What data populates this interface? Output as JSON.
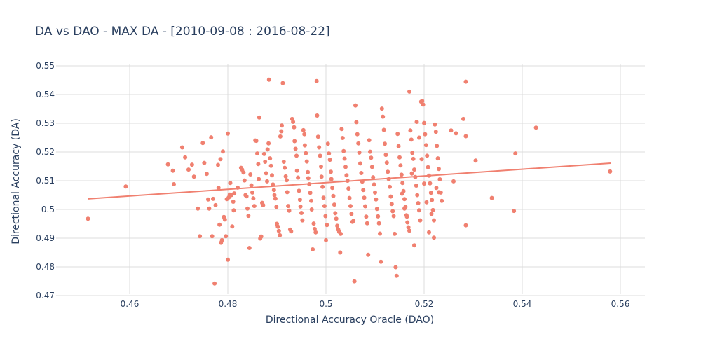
{
  "chart_data": {
    "type": "scatter",
    "title": "DA vs DAO - MAX DA - [2010-09-08 : 2016-08-22]",
    "xlabel": "Directional Accuracy Oracle (DAO)",
    "ylabel": "Directional Accuracy (DA)",
    "xlim": [
      0.445,
      0.565
    ],
    "ylim": [
      0.4705,
      0.5505
    ],
    "xticks": [
      0.46,
      0.48,
      0.5,
      0.52,
      0.54,
      0.56
    ],
    "yticks": [
      0.47,
      0.48,
      0.49,
      0.5,
      0.51,
      0.52,
      0.53,
      0.54,
      0.55
    ],
    "xtick_labels": [
      "0.46",
      "0.48",
      "0.5",
      "0.52",
      "0.54",
      "0.56"
    ],
    "ytick_labels": [
      "0.47",
      "0.48",
      "0.49",
      "0.5",
      "0.51",
      "0.52",
      "0.53",
      "0.54",
      "0.55"
    ],
    "grid": true,
    "marker_color": "#f08070",
    "line_color": "#f08070",
    "trendline": {
      "x": [
        0.4515,
        0.558
      ],
      "y": [
        0.5037,
        0.5161
      ]
    },
    "points": [
      [
        0.4515,
        0.4968
      ],
      [
        0.4592,
        0.508
      ],
      [
        0.4678,
        0.5157
      ],
      [
        0.4688,
        0.5135
      ],
      [
        0.469,
        0.5088
      ],
      [
        0.4707,
        0.5216
      ],
      [
        0.4713,
        0.5181
      ],
      [
        0.472,
        0.5139
      ],
      [
        0.4727,
        0.5156
      ],
      [
        0.4731,
        0.5114
      ],
      [
        0.4739,
        0.5003
      ],
      [
        0.4743,
        0.4907
      ],
      [
        0.4749,
        0.5231
      ],
      [
        0.4752,
        0.5162
      ],
      [
        0.4757,
        0.5124
      ],
      [
        0.476,
        0.5035
      ],
      [
        0.4762,
        0.5003
      ],
      [
        0.4766,
        0.5251
      ],
      [
        0.477,
        0.5037
      ],
      [
        0.4775,
        0.5015
      ],
      [
        0.4768,
        0.4907
      ],
      [
        0.4773,
        0.4742
      ],
      [
        0.478,
        0.5155
      ],
      [
        0.4781,
        0.5075
      ],
      [
        0.4783,
        0.4947
      ],
      [
        0.4785,
        0.5175
      ],
      [
        0.4786,
        0.4884
      ],
      [
        0.4788,
        0.4893
      ],
      [
        0.479,
        0.5202
      ],
      [
        0.4792,
        0.4974
      ],
      [
        0.4794,
        0.4965
      ],
      [
        0.4796,
        0.4907
      ],
      [
        0.4798,
        0.5036
      ],
      [
        0.48,
        0.5264
      ],
      [
        0.48,
        0.4825
      ],
      [
        0.4802,
        0.5042
      ],
      [
        0.4804,
        0.5052
      ],
      [
        0.4805,
        0.5092
      ],
      [
        0.4807,
        0.505
      ],
      [
        0.4809,
        0.4941
      ],
      [
        0.4811,
        0.5027
      ],
      [
        0.4812,
        0.4997
      ],
      [
        0.4813,
        0.5056
      ],
      [
        0.482,
        0.5076
      ],
      [
        0.4827,
        0.5145
      ],
      [
        0.4829,
        0.5139
      ],
      [
        0.4832,
        0.5129
      ],
      [
        0.4834,
        0.5101
      ],
      [
        0.4836,
        0.505
      ],
      [
        0.4838,
        0.5046
      ],
      [
        0.484,
        0.5003
      ],
      [
        0.4842,
        0.4978
      ],
      [
        0.4844,
        0.4866
      ],
      [
        0.4846,
        0.5122
      ],
      [
        0.4848,
        0.5084
      ],
      [
        0.485,
        0.5059
      ],
      [
        0.4852,
        0.5039
      ],
      [
        0.4854,
        0.5012
      ],
      [
        0.4856,
        0.524
      ],
      [
        0.4858,
        0.5239
      ],
      [
        0.486,
        0.5195
      ],
      [
        0.4862,
        0.5158
      ],
      [
        0.4863,
        0.5106
      ],
      [
        0.4864,
        0.532
      ],
      [
        0.4866,
        0.4899
      ],
      [
        0.4868,
        0.4906
      ],
      [
        0.487,
        0.5023
      ],
      [
        0.4872,
        0.5015
      ],
      [
        0.4874,
        0.5193
      ],
      [
        0.4876,
        0.5166
      ],
      [
        0.4878,
        0.5126
      ],
      [
        0.488,
        0.5098
      ],
      [
        0.4881,
        0.5209
      ],
      [
        0.4883,
        0.523
      ],
      [
        0.4884,
        0.5452
      ],
      [
        0.4886,
        0.5178
      ],
      [
        0.4888,
        0.5152
      ],
      [
        0.489,
        0.5119
      ],
      [
        0.4892,
        0.5087
      ],
      [
        0.4894,
        0.5068
      ],
      [
        0.4895,
        0.505
      ],
      [
        0.4897,
        0.5038
      ],
      [
        0.4899,
        0.5009
      ],
      [
        0.49,
        0.495
      ],
      [
        0.4902,
        0.494
      ],
      [
        0.4904,
        0.4925
      ],
      [
        0.4906,
        0.491
      ],
      [
        0.4907,
        0.5254
      ],
      [
        0.4909,
        0.5272
      ],
      [
        0.491,
        0.5292
      ],
      [
        0.4912,
        0.544
      ],
      [
        0.4914,
        0.5166
      ],
      [
        0.4916,
        0.5145
      ],
      [
        0.4918,
        0.5115
      ],
      [
        0.492,
        0.5102
      ],
      [
        0.4921,
        0.506
      ],
      [
        0.4923,
        0.5012
      ],
      [
        0.4925,
        0.4996
      ],
      [
        0.4927,
        0.493
      ],
      [
        0.4929,
        0.4924
      ],
      [
        0.4931,
        0.5315
      ],
      [
        0.4933,
        0.5305
      ],
      [
        0.4935,
        0.5286
      ],
      [
        0.4936,
        0.5238
      ],
      [
        0.4938,
        0.5211
      ],
      [
        0.494,
        0.5187
      ],
      [
        0.4941,
        0.5135
      ],
      [
        0.4943,
        0.5111
      ],
      [
        0.4945,
        0.5065
      ],
      [
        0.4947,
        0.5034
      ],
      [
        0.4948,
        0.501
      ],
      [
        0.495,
        0.4988
      ],
      [
        0.4952,
        0.4962
      ],
      [
        0.4954,
        0.5276
      ],
      [
        0.4956,
        0.5262
      ],
      [
        0.4957,
        0.5223
      ],
      [
        0.4959,
        0.5196
      ],
      [
        0.4961,
        0.5167
      ],
      [
        0.4963,
        0.513
      ],
      [
        0.4964,
        0.5109
      ],
      [
        0.4966,
        0.5088
      ],
      [
        0.4968,
        0.5058
      ],
      [
        0.497,
        0.503
      ],
      [
        0.4971,
        0.5
      ],
      [
        0.4973,
        0.4861
      ],
      [
        0.4975,
        0.4951
      ],
      [
        0.4977,
        0.4932
      ],
      [
        0.4979,
        0.492
      ],
      [
        0.4981,
        0.5447
      ],
      [
        0.4982,
        0.5327
      ],
      [
        0.4984,
        0.5253
      ],
      [
        0.4986,
        0.5216
      ],
      [
        0.4988,
        0.5187
      ],
      [
        0.499,
        0.5149
      ],
      [
        0.4991,
        0.5114
      ],
      [
        0.4993,
        0.5079
      ],
      [
        0.4995,
        0.5041
      ],
      [
        0.4997,
        0.5012
      ],
      [
        0.4999,
        0.4977
      ],
      [
        0.5,
        0.4893
      ],
      [
        0.5002,
        0.4946
      ],
      [
        0.5004,
        0.5229
      ],
      [
        0.5006,
        0.5195
      ],
      [
        0.5008,
        0.5173
      ],
      [
        0.501,
        0.5131
      ],
      [
        0.5011,
        0.5106
      ],
      [
        0.5013,
        0.5075
      ],
      [
        0.5015,
        0.5047
      ],
      [
        0.5017,
        0.5017
      ],
      [
        0.5019,
        0.4987
      ],
      [
        0.5021,
        0.4968
      ],
      [
        0.5023,
        0.4943
      ],
      [
        0.5025,
        0.493
      ],
      [
        0.5027,
        0.4922
      ],
      [
        0.5029,
        0.485
      ],
      [
        0.503,
        0.4915
      ],
      [
        0.5032,
        0.528
      ],
      [
        0.5034,
        0.5249
      ],
      [
        0.5036,
        0.5203
      ],
      [
        0.5038,
        0.5177
      ],
      [
        0.504,
        0.5148
      ],
      [
        0.5042,
        0.5119
      ],
      [
        0.5044,
        0.51
      ],
      [
        0.5046,
        0.5073
      ],
      [
        0.5048,
        0.504
      ],
      [
        0.505,
        0.5012
      ],
      [
        0.5052,
        0.4985
      ],
      [
        0.5054,
        0.4957
      ],
      [
        0.5056,
        0.496
      ],
      [
        0.5058,
        0.475
      ],
      [
        0.506,
        0.5362
      ],
      [
        0.5062,
        0.5304
      ],
      [
        0.5064,
        0.5262
      ],
      [
        0.5066,
        0.523
      ],
      [
        0.5068,
        0.5198
      ],
      [
        0.507,
        0.516
      ],
      [
        0.5072,
        0.5127
      ],
      [
        0.5074,
        0.5097
      ],
      [
        0.5076,
        0.5068
      ],
      [
        0.5078,
        0.5041
      ],
      [
        0.508,
        0.5011
      ],
      [
        0.5082,
        0.4975
      ],
      [
        0.5084,
        0.4952
      ],
      [
        0.5086,
        0.4842
      ],
      [
        0.5088,
        0.5241
      ],
      [
        0.509,
        0.5201
      ],
      [
        0.5092,
        0.518
      ],
      [
        0.5094,
        0.5148
      ],
      [
        0.5096,
        0.5112
      ],
      [
        0.5098,
        0.5087
      ],
      [
        0.51,
        0.5059
      ],
      [
        0.5102,
        0.5035
      ],
      [
        0.5104,
        0.5002
      ],
      [
        0.5106,
        0.4976
      ],
      [
        0.5108,
        0.4952
      ],
      [
        0.511,
        0.4916
      ],
      [
        0.5112,
        0.4818
      ],
      [
        0.5114,
        0.5351
      ],
      [
        0.5116,
        0.5323
      ],
      [
        0.5118,
        0.5277
      ],
      [
        0.512,
        0.5229
      ],
      [
        0.5122,
        0.519
      ],
      [
        0.5124,
        0.5163
      ],
      [
        0.5126,
        0.5131
      ],
      [
        0.5128,
        0.5106
      ],
      [
        0.513,
        0.5079
      ],
      [
        0.5132,
        0.5045
      ],
      [
        0.5134,
        0.5019
      ],
      [
        0.5136,
        0.4994
      ],
      [
        0.5138,
        0.4977
      ],
      [
        0.514,
        0.4915
      ],
      [
        0.5142,
        0.4799
      ],
      [
        0.5144,
        0.4769
      ],
      [
        0.5146,
        0.5263
      ],
      [
        0.5148,
        0.522
      ],
      [
        0.515,
        0.5181
      ],
      [
        0.5152,
        0.5153
      ],
      [
        0.5154,
        0.5121
      ],
      [
        0.5156,
        0.5092
      ],
      [
        0.5158,
        0.5064
      ],
      [
        0.516,
        0.5036
      ],
      [
        0.5162,
        0.5009
      ],
      [
        0.5164,
        0.498
      ],
      [
        0.5166,
        0.4955
      ],
      [
        0.5168,
        0.4938
      ],
      [
        0.517,
        0.4926
      ],
      [
        0.5172,
        0.5275
      ],
      [
        0.5174,
        0.5243
      ],
      [
        0.5176,
        0.5197
      ],
      [
        0.5178,
        0.5176
      ],
      [
        0.518,
        0.5139
      ],
      [
        0.5182,
        0.5113
      ],
      [
        0.5184,
        0.5083
      ],
      [
        0.5186,
        0.505
      ],
      [
        0.5188,
        0.5022
      ],
      [
        0.519,
        0.4997
      ],
      [
        0.5192,
        0.4962
      ],
      [
        0.5194,
        0.5375
      ],
      [
        0.5196,
        0.5378
      ],
      [
        0.5198,
        0.5365
      ],
      [
        0.52,
        0.5301
      ],
      [
        0.5202,
        0.5262
      ],
      [
        0.5204,
        0.5224
      ],
      [
        0.5206,
        0.5187
      ],
      [
        0.5208,
        0.5147
      ],
      [
        0.521,
        0.5118
      ],
      [
        0.5212,
        0.5091
      ],
      [
        0.5214,
        0.5058
      ],
      [
        0.5216,
        0.5033
      ],
      [
        0.5218,
        0.4998
      ],
      [
        0.522,
        0.4962
      ],
      [
        0.5222,
        0.5296
      ],
      [
        0.5224,
        0.527
      ],
      [
        0.5226,
        0.5221
      ],
      [
        0.5228,
        0.5178
      ],
      [
        0.523,
        0.5141
      ],
      [
        0.5232,
        0.5105
      ],
      [
        0.5234,
        0.5059
      ],
      [
        0.5236,
        0.503
      ],
      [
        0.5155,
        0.5055
      ],
      [
        0.516,
        0.5003
      ],
      [
        0.5165,
        0.4975
      ],
      [
        0.517,
        0.541
      ],
      [
        0.5175,
        0.5125
      ],
      [
        0.518,
        0.4875
      ],
      [
        0.5185,
        0.5305
      ],
      [
        0.519,
        0.525
      ],
      [
        0.5195,
        0.5175
      ],
      [
        0.52,
        0.509
      ],
      [
        0.5205,
        0.5025
      ],
      [
        0.521,
        0.492
      ],
      [
        0.5215,
        0.4985
      ],
      [
        0.522,
        0.4902
      ],
      [
        0.5225,
        0.5075
      ],
      [
        0.523,
        0.506
      ],
      [
        0.5255,
        0.5275
      ],
      [
        0.526,
        0.5098
      ],
      [
        0.5265,
        0.5265
      ],
      [
        0.528,
        0.5315
      ],
      [
        0.5285,
        0.5255
      ],
      [
        0.5285,
        0.5445
      ],
      [
        0.5285,
        0.4945
      ],
      [
        0.5305,
        0.517
      ],
      [
        0.5338,
        0.504
      ],
      [
        0.5383,
        0.4995
      ],
      [
        0.5386,
        0.5195
      ],
      [
        0.5428,
        0.5285
      ],
      [
        0.5579,
        0.5132
      ]
    ]
  }
}
